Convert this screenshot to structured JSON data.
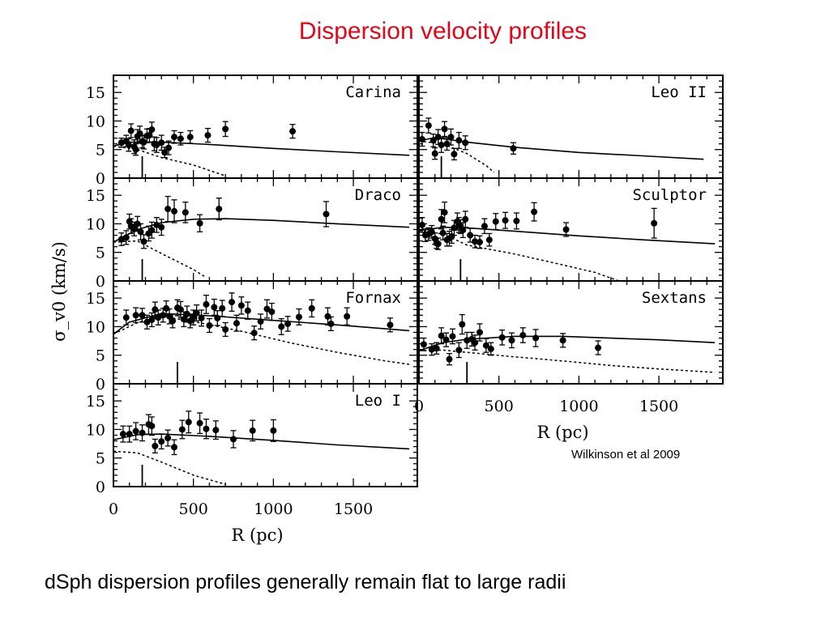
{
  "slide": {
    "title": "Dispersion velocity profiles",
    "citation": "Wilkinson et al 2009",
    "caption": "dSph dispersion profiles generally remain flat to large radii"
  },
  "chart_data": {
    "type": "scatter",
    "xlabel": "R (pc)",
    "ylabel": "σ_v0 (km/s)",
    "xlim": [
      0,
      1900
    ],
    "ylim": [
      0,
      18
    ],
    "xticks": [
      0,
      500,
      1000,
      1500
    ],
    "yticks": [
      0,
      5,
      10,
      15
    ],
    "grid": false,
    "panels": [
      {
        "name": "Carina",
        "core_radius": 180,
        "points": [
          [
            50,
            6.2,
            0.8
          ],
          [
            80,
            6.5,
            1.0
          ],
          [
            95,
            5.8,
            1.1
          ],
          [
            110,
            8.3,
            1.2
          ],
          [
            130,
            5.5,
            1.2
          ],
          [
            140,
            5.0,
            1.0
          ],
          [
            150,
            7.3,
            1.2
          ],
          [
            165,
            7.8,
            1.3
          ],
          [
            180,
            6.4,
            1.1
          ],
          [
            190,
            6.3,
            1.2
          ],
          [
            210,
            7.4,
            1.2
          ],
          [
            225,
            7.5,
            1.2
          ],
          [
            240,
            8.5,
            1.3
          ],
          [
            255,
            6.0,
            1.2
          ],
          [
            270,
            5.8,
            1.3
          ],
          [
            300,
            6.2,
            1.3
          ],
          [
            320,
            4.5,
            0.9
          ],
          [
            345,
            5.3,
            1.2
          ],
          [
            380,
            7.2,
            1.1
          ],
          [
            420,
            6.9,
            1.1
          ],
          [
            480,
            7.2,
            1.1
          ],
          [
            590,
            7.5,
            1.2
          ],
          [
            700,
            8.6,
            1.3
          ],
          [
            1120,
            8.2,
            1.2
          ]
        ],
        "solid": [
          [
            0,
            5.6
          ],
          [
            100,
            6.3
          ],
          [
            300,
            6.3
          ],
          [
            600,
            5.9
          ],
          [
            1000,
            5.2
          ],
          [
            1400,
            4.6
          ],
          [
            1850,
            4.0
          ]
        ],
        "dashed": [
          [
            0,
            5.6
          ],
          [
            150,
            5.0
          ],
          [
            300,
            3.6
          ],
          [
            500,
            2.3
          ],
          [
            700,
            0.4
          ]
        ]
      },
      {
        "name": "Leo II",
        "core_radius": 140,
        "points": [
          [
            20,
            6.8,
            1.2
          ],
          [
            60,
            9.2,
            1.3
          ],
          [
            90,
            6.6,
            1.1
          ],
          [
            100,
            4.3,
            1.0
          ],
          [
            120,
            7.2,
            1.3
          ],
          [
            140,
            5.8,
            1.3
          ],
          [
            160,
            8.6,
            1.3
          ],
          [
            175,
            6.0,
            1.1
          ],
          [
            200,
            7.2,
            1.4
          ],
          [
            220,
            4.2,
            1.0
          ],
          [
            250,
            6.6,
            1.4
          ],
          [
            290,
            6.2,
            1.2
          ],
          [
            590,
            5.2,
            1.0
          ]
        ],
        "solid": [
          [
            0,
            6.5
          ],
          [
            100,
            7.1
          ],
          [
            300,
            6.3
          ],
          [
            600,
            5.4
          ],
          [
            1000,
            4.5
          ],
          [
            1400,
            3.9
          ],
          [
            1780,
            3.3
          ]
        ],
        "dashed": [
          [
            0,
            6.5
          ],
          [
            150,
            6.0
          ],
          [
            300,
            4.3
          ],
          [
            420,
            2.2
          ],
          [
            470,
            1.0
          ]
        ]
      },
      {
        "name": "Draco",
        "core_radius": 180,
        "points": [
          [
            50,
            7.3,
            1.1
          ],
          [
            80,
            7.6,
            1.2
          ],
          [
            100,
            10.4,
            1.3
          ],
          [
            110,
            9.6,
            1.3
          ],
          [
            130,
            9.1,
            1.2
          ],
          [
            150,
            10.0,
            1.3
          ],
          [
            170,
            8.6,
            1.4
          ],
          [
            190,
            6.9,
            1.2
          ],
          [
            220,
            8.3,
            1.3
          ],
          [
            240,
            8.9,
            1.4
          ],
          [
            270,
            9.8,
            1.3
          ],
          [
            300,
            9.4,
            1.4
          ],
          [
            340,
            12.6,
            2.2
          ],
          [
            380,
            12.2,
            2.0
          ],
          [
            450,
            12.0,
            1.8
          ],
          [
            540,
            10.1,
            1.5
          ],
          [
            660,
            12.6,
            1.9
          ],
          [
            1330,
            11.7,
            2.2
          ]
        ],
        "solid": [
          [
            0,
            6.8
          ],
          [
            150,
            9.0
          ],
          [
            300,
            10.2
          ],
          [
            500,
            10.8
          ],
          [
            700,
            10.9
          ],
          [
            1000,
            10.6
          ],
          [
            1400,
            10.0
          ],
          [
            1850,
            9.4
          ]
        ],
        "dashed": [
          [
            0,
            6.8
          ],
          [
            150,
            7.0
          ],
          [
            300,
            4.8
          ],
          [
            500,
            2.0
          ],
          [
            580,
            0.6
          ]
        ]
      },
      {
        "name": "Sculptor",
        "core_radius": 260,
        "points": [
          [
            20,
            9.8,
            1.3
          ],
          [
            40,
            8.0,
            1.1
          ],
          [
            60,
            8.2,
            1.1
          ],
          [
            80,
            8.6,
            1.1
          ],
          [
            100,
            7.4,
            1.0
          ],
          [
            110,
            6.6,
            0.9
          ],
          [
            120,
            6.5,
            1.0
          ],
          [
            140,
            10.8,
            1.7
          ],
          [
            150,
            8.4,
            1.2
          ],
          [
            160,
            12.0,
            1.8
          ],
          [
            175,
            7.2,
            1.1
          ],
          [
            190,
            7.4,
            1.3
          ],
          [
            205,
            7.8,
            1.2
          ],
          [
            220,
            9.3,
            1.3
          ],
          [
            240,
            10.4,
            1.5
          ],
          [
            250,
            9.8,
            1.3
          ],
          [
            260,
            9.5,
            1.2
          ],
          [
            275,
            8.9,
            1.3
          ],
          [
            290,
            10.8,
            1.4
          ],
          [
            320,
            8.0,
            1.2
          ],
          [
            350,
            6.9,
            1.1
          ],
          [
            380,
            6.8,
            1.1
          ],
          [
            410,
            9.6,
            1.3
          ],
          [
            440,
            7.2,
            1.1
          ],
          [
            480,
            10.4,
            1.4
          ],
          [
            540,
            10.6,
            1.4
          ],
          [
            610,
            10.5,
            1.4
          ],
          [
            720,
            12.1,
            1.6
          ],
          [
            920,
            9.0,
            1.2
          ],
          [
            1470,
            10.1,
            2.6
          ]
        ],
        "solid": [
          [
            0,
            8.8
          ],
          [
            150,
            9.4
          ],
          [
            300,
            9.3
          ],
          [
            600,
            8.7
          ],
          [
            1000,
            7.9
          ],
          [
            1400,
            7.2
          ],
          [
            1850,
            6.5
          ]
        ],
        "dashed": [
          [
            0,
            8.8
          ],
          [
            150,
            8.2
          ],
          [
            300,
            6.3
          ],
          [
            600,
            4.7
          ],
          [
            900,
            2.8
          ],
          [
            1100,
            1.5
          ],
          [
            1250,
            0.0
          ]
        ]
      },
      {
        "name": "Fornax",
        "core_radius": 400,
        "points": [
          [
            80,
            11.6,
            1.3
          ],
          [
            140,
            12.0,
            1.3
          ],
          [
            180,
            12.0,
            1.2
          ],
          [
            210,
            10.8,
            1.2
          ],
          [
            240,
            11.2,
            1.2
          ],
          [
            260,
            13.0,
            1.3
          ],
          [
            280,
            11.6,
            1.3
          ],
          [
            310,
            12.0,
            1.2
          ],
          [
            330,
            13.2,
            1.3
          ],
          [
            350,
            11.8,
            1.3
          ],
          [
            370,
            11.0,
            1.2
          ],
          [
            400,
            13.3,
            1.4
          ],
          [
            420,
            13.0,
            1.4
          ],
          [
            440,
            11.3,
            1.3
          ],
          [
            460,
            12.2,
            1.4
          ],
          [
            480,
            11.0,
            1.2
          ],
          [
            500,
            11.6,
            1.3
          ],
          [
            520,
            12.4,
            1.4
          ],
          [
            550,
            11.5,
            1.4
          ],
          [
            580,
            13.9,
            1.6
          ],
          [
            600,
            10.2,
            1.2
          ],
          [
            630,
            13.4,
            1.4
          ],
          [
            650,
            11.5,
            1.3
          ],
          [
            680,
            13.2,
            1.4
          ],
          [
            700,
            9.5,
            1.2
          ],
          [
            740,
            14.3,
            1.6
          ],
          [
            770,
            10.6,
            1.4
          ],
          [
            800,
            13.7,
            1.5
          ],
          [
            840,
            12.8,
            1.5
          ],
          [
            880,
            8.9,
            1.2
          ],
          [
            920,
            10.9,
            1.3
          ],
          [
            960,
            13.1,
            1.6
          ],
          [
            990,
            12.6,
            1.5
          ],
          [
            1050,
            10.0,
            1.4
          ],
          [
            1090,
            10.5,
            1.3
          ],
          [
            1160,
            11.7,
            1.4
          ],
          [
            1240,
            13.2,
            1.5
          ],
          [
            1340,
            11.8,
            1.5
          ],
          [
            1360,
            10.5,
            1.2
          ],
          [
            1460,
            11.8,
            1.5
          ],
          [
            1730,
            10.3,
            1.2
          ]
        ],
        "solid": [
          [
            0,
            8.7
          ],
          [
            100,
            10.8
          ],
          [
            300,
            12.3
          ],
          [
            600,
            11.9
          ],
          [
            1000,
            11.1
          ],
          [
            1400,
            10.3
          ],
          [
            1850,
            9.3
          ]
        ],
        "dashed": [
          [
            0,
            8.7
          ],
          [
            150,
            10.7
          ],
          [
            300,
            11.8
          ],
          [
            500,
            10.9
          ],
          [
            800,
            9.2
          ],
          [
            1100,
            7.2
          ],
          [
            1400,
            5.5
          ],
          [
            1700,
            4.0
          ],
          [
            1850,
            3.4
          ]
        ]
      },
      {
        "name": "Sextans",
        "core_radius": 300,
        "points": [
          [
            30,
            6.9,
            1.1
          ],
          [
            80,
            6.0,
            1.0
          ],
          [
            110,
            6.2,
            1.0
          ],
          [
            140,
            8.4,
            1.4
          ],
          [
            170,
            7.7,
            1.2
          ],
          [
            190,
            4.3,
            1.0
          ],
          [
            210,
            8.3,
            1.3
          ],
          [
            250,
            5.9,
            1.3
          ],
          [
            270,
            10.4,
            1.7
          ],
          [
            300,
            7.6,
            1.4
          ],
          [
            330,
            7.8,
            1.2
          ],
          [
            350,
            7.2,
            1.3
          ],
          [
            380,
            9.0,
            1.5
          ],
          [
            420,
            6.7,
            1.2
          ],
          [
            450,
            6.1,
            1.1
          ],
          [
            520,
            8.1,
            1.3
          ],
          [
            580,
            7.6,
            1.3
          ],
          [
            650,
            8.5,
            1.3
          ],
          [
            730,
            8.0,
            1.5
          ],
          [
            900,
            7.6,
            1.2
          ],
          [
            1120,
            6.3,
            1.2
          ]
        ],
        "solid": [
          [
            0,
            5.8
          ],
          [
            150,
            7.2
          ],
          [
            300,
            7.8
          ],
          [
            600,
            8.3
          ],
          [
            900,
            8.3
          ],
          [
            1200,
            8.0
          ],
          [
            1500,
            7.7
          ],
          [
            1850,
            7.2
          ]
        ],
        "dashed": [
          [
            0,
            5.8
          ],
          [
            150,
            5.9
          ],
          [
            300,
            5.5
          ],
          [
            600,
            4.7
          ],
          [
            900,
            4.0
          ],
          [
            1200,
            3.2
          ],
          [
            1500,
            2.6
          ],
          [
            1850,
            2.0
          ]
        ]
      },
      {
        "name": "Leo I",
        "core_radius": 180,
        "points": [
          [
            60,
            9.2,
            1.4
          ],
          [
            100,
            9.2,
            1.4
          ],
          [
            140,
            9.7,
            1.5
          ],
          [
            180,
            9.4,
            1.4
          ],
          [
            220,
            10.9,
            1.7
          ],
          [
            240,
            10.6,
            1.6
          ],
          [
            260,
            7.1,
            1.2
          ],
          [
            300,
            7.9,
            1.3
          ],
          [
            340,
            8.5,
            1.4
          ],
          [
            380,
            6.9,
            1.3
          ],
          [
            430,
            10.0,
            1.6
          ],
          [
            470,
            11.3,
            1.9
          ],
          [
            540,
            11.1,
            1.8
          ],
          [
            580,
            10.1,
            1.7
          ],
          [
            640,
            9.9,
            1.6
          ],
          [
            750,
            8.3,
            1.5
          ],
          [
            870,
            9.8,
            1.8
          ],
          [
            1000,
            9.8,
            1.9
          ]
        ],
        "solid": [
          [
            0,
            8.2
          ],
          [
            150,
            9.1
          ],
          [
            300,
            9.2
          ],
          [
            600,
            8.8
          ],
          [
            1000,
            8.1
          ],
          [
            1400,
            7.3
          ],
          [
            1850,
            6.6
          ]
        ],
        "dashed": [
          [
            0,
            6.2
          ],
          [
            150,
            5.9
          ],
          [
            300,
            4.3
          ],
          [
            500,
            2.0
          ],
          [
            700,
            0.4
          ]
        ]
      }
    ]
  }
}
